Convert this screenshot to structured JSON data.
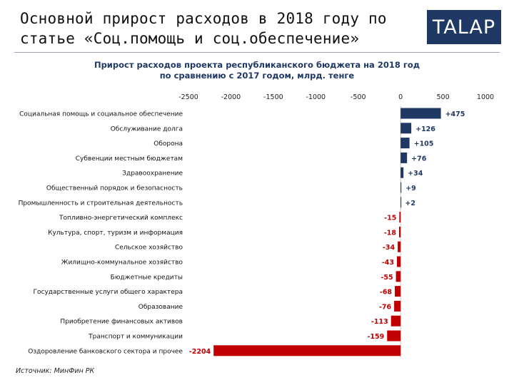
{
  "header": {
    "title": "Основной прирост расходов в 2018 году по статье «Соц.помощь и соц.обеспечение»",
    "logo_text": "TALAP"
  },
  "source": "Источник: МинФин РК",
  "colors": {
    "positive": "#1f3864",
    "negative": "#c00000",
    "brand": "#1f3864"
  },
  "chart_data": {
    "type": "bar",
    "orientation": "horizontal",
    "title": "Прирост расходов проекта республиканского  бюджета на 2018 год",
    "subtitle": "по сравнению с 2017 годом, млрд. тенге",
    "xlim": [
      -2500,
      1000
    ],
    "x_ticks": [
      -2500,
      -2000,
      -1500,
      -1000,
      -500,
      0,
      500,
      1000
    ],
    "x_tick_labels": [
      "-2500",
      "-2000",
      "-1500",
      "-1000",
      "-500",
      "0",
      "500",
      "1000"
    ],
    "grid": false,
    "categories": [
      "Социальная помощь и социальное обеспечение",
      "Обслуживание долга",
      "Оборона",
      "Субвенции местным бюджетам",
      "Здравоохранение",
      "Общественный порядок и безопасность",
      "Промышленность и строительная деятельность",
      "Топливно-энергетический комплекс",
      "Культура, спорт, туризм и информация",
      "Сельское хозяйство",
      "Жилищно-коммунальное хозяйство",
      "Бюджетные кредиты",
      "Государственные услуги общего характера",
      "Образование",
      "Приобретение финансовых активов",
      "Транспорт и коммуникации",
      "Оздоровление банковского сектора и прочее"
    ],
    "values": [
      475,
      126,
      105,
      76,
      34,
      9,
      2,
      -15,
      -18,
      -34,
      -43,
      -55,
      -68,
      -76,
      -113,
      -159,
      -2204
    ],
    "data_labels": [
      "+475",
      "+126",
      "+105",
      "+76",
      "+34",
      "+9",
      "+2",
      "-15",
      "-18",
      "-34",
      "-43",
      "-55",
      "-68",
      "-76",
      "-113",
      "-159",
      "-2204"
    ]
  }
}
